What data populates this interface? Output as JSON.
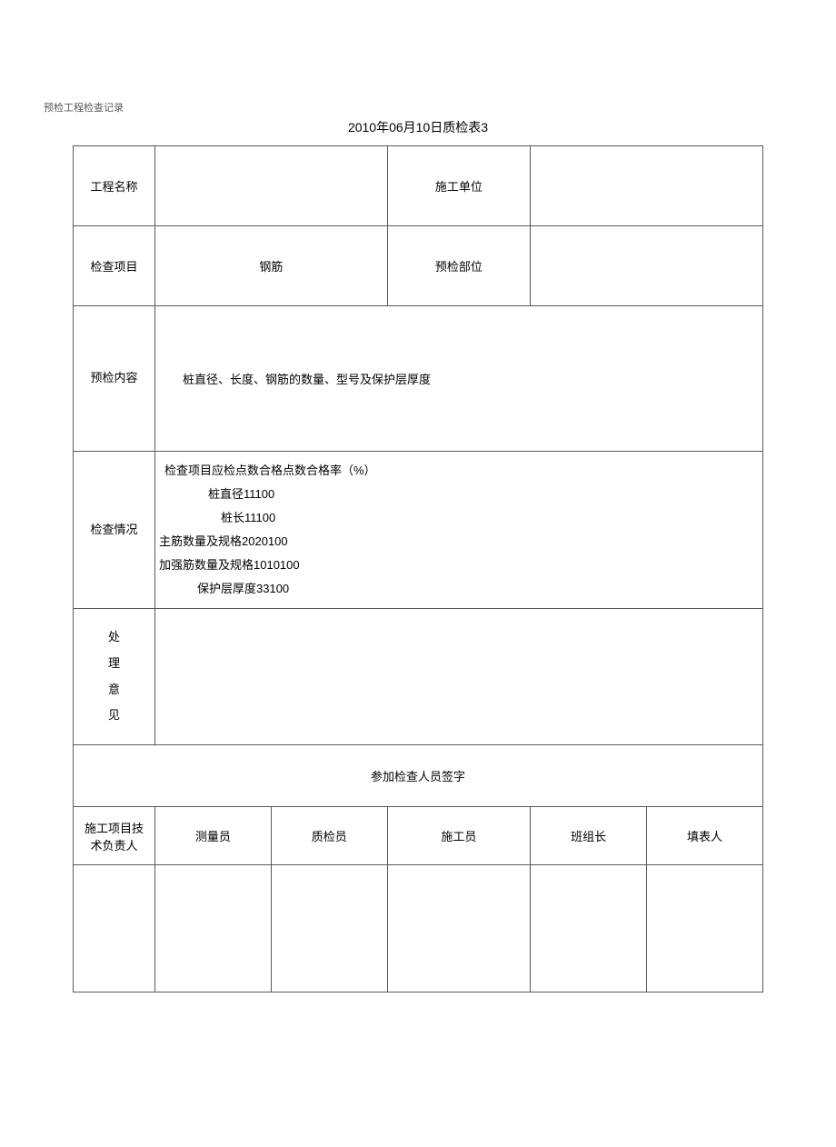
{
  "page_header": "预检工程检查记录",
  "table_title": "2010年06月10日质检表3",
  "row1": {
    "label1": "工程名称",
    "value1": "",
    "label2": "施工单位",
    "value2": ""
  },
  "row2": {
    "label1": "检查项目",
    "value1": "钢筋",
    "label2": "预检部位",
    "value2": ""
  },
  "row3": {
    "label": "预检内容",
    "content": "桩直径、长度、钢筋的数量、型号及保护层厚度"
  },
  "row4": {
    "label": "检查情况",
    "line1": "检查项目应检点数合格点数合格率（%）",
    "line2": "桩直径11100",
    "line3": "桩长11100",
    "line4": "主筋数量及规格2020100",
    "line5": "加强筋数量及规格1010100",
    "line6": "保护层厚度33100"
  },
  "row5": {
    "label": "处理意见",
    "label_c1": "处",
    "label_c2": "理",
    "label_c3": "意",
    "label_c4": "见"
  },
  "row6": {
    "title": "参加检查人员签字"
  },
  "row7": {
    "col1": "施工项目技术负责人",
    "col2": "测量员",
    "col3": "质检员",
    "col4": "施工员",
    "col5": "班组长",
    "col6": "填表人"
  },
  "colors": {
    "background": "#ffffff",
    "text": "#000000",
    "header_text": "#595959",
    "border": "#595959"
  },
  "font": {
    "header_size": 11,
    "title_size": 14,
    "body_size": 13
  }
}
